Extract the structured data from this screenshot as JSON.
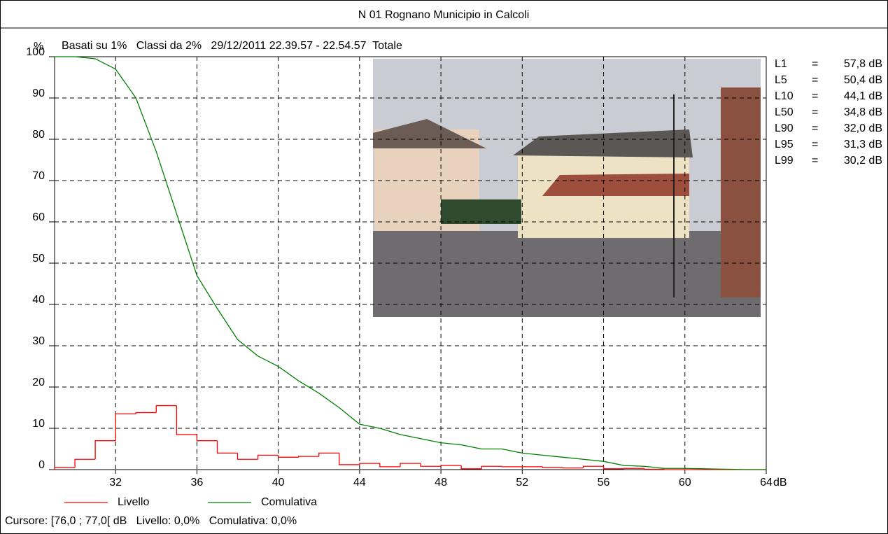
{
  "chart_data": {
    "type": "combo",
    "title": "N 01 Rognano Municipio in Calcoli",
    "subtitle": "Basati su 1%   Classi da 2%   29/12/2011 22.39.57 - 22.54.57  Totale",
    "y_label": "%",
    "x_label": "dB",
    "xlim": [
      29,
      64
    ],
    "ylim": [
      0,
      100
    ],
    "xticks": [
      32,
      36,
      40,
      44,
      48,
      52,
      56,
      60,
      64
    ],
    "yticks": [
      0,
      10,
      20,
      30,
      40,
      50,
      60,
      70,
      80,
      90,
      100
    ],
    "grid": true,
    "series": [
      {
        "name": "Livello",
        "type": "histogram",
        "color": "#ff0000",
        "bins": [
          29,
          30,
          31,
          32,
          33,
          34,
          35,
          36,
          37,
          38,
          39,
          40,
          41,
          42,
          43,
          44,
          45,
          46,
          47,
          48,
          49,
          50,
          51,
          52,
          53,
          54,
          55,
          56,
          57,
          58,
          59,
          60,
          61,
          62,
          63,
          64
        ],
        "values": [
          0.5,
          2.5,
          7,
          13.5,
          13.8,
          15.5,
          8.5,
          7,
          4,
          2.5,
          3.5,
          3,
          3.2,
          4,
          1.2,
          1.5,
          0.7,
          1.5,
          0.8,
          1,
          0.2,
          0.8,
          0.7,
          0.7,
          0.5,
          0.4,
          0.8,
          0.2,
          0.3,
          0.1,
          0,
          0,
          0,
          0,
          0
        ]
      },
      {
        "name": "Comulativa",
        "type": "line",
        "color": "#008000",
        "x": [
          29,
          30,
          31,
          32,
          33,
          34,
          35,
          36,
          37,
          38,
          39,
          40,
          41,
          42,
          43,
          44,
          45,
          46,
          47,
          48,
          49,
          50,
          51,
          52,
          53,
          54,
          55,
          56,
          57,
          58,
          59,
          60,
          61,
          62,
          63,
          64
        ],
        "values": [
          100,
          100,
          99.5,
          97,
          90,
          77,
          62,
          47,
          39,
          31.5,
          27.5,
          25,
          21.5,
          18.5,
          15,
          11,
          10,
          8.5,
          7.5,
          6.5,
          6,
          5,
          5,
          4,
          3.5,
          3,
          2.5,
          2,
          1,
          0.8,
          0.3,
          0.3,
          0.2,
          0.1,
          0,
          0
        ]
      }
    ],
    "stats": [
      {
        "name": "L1",
        "sep": "=",
        "value": "57,8 dB"
      },
      {
        "name": "L5",
        "sep": "=",
        "value": "50,4 dB"
      },
      {
        "name": "L10",
        "sep": "=",
        "value": "44,1 dB"
      },
      {
        "name": "L50",
        "sep": "=",
        "value": "34,8 dB"
      },
      {
        "name": "L90",
        "sep": "=",
        "value": "32,0 dB"
      },
      {
        "name": "L95",
        "sep": "=",
        "value": "31,3 dB"
      },
      {
        "name": "L99",
        "sep": "=",
        "value": "30,2 dB"
      }
    ],
    "cursor": "Cursore: [76,0 ; 77,0[ dB   Livello: 0,0%   Comulativa: 0,0%"
  }
}
